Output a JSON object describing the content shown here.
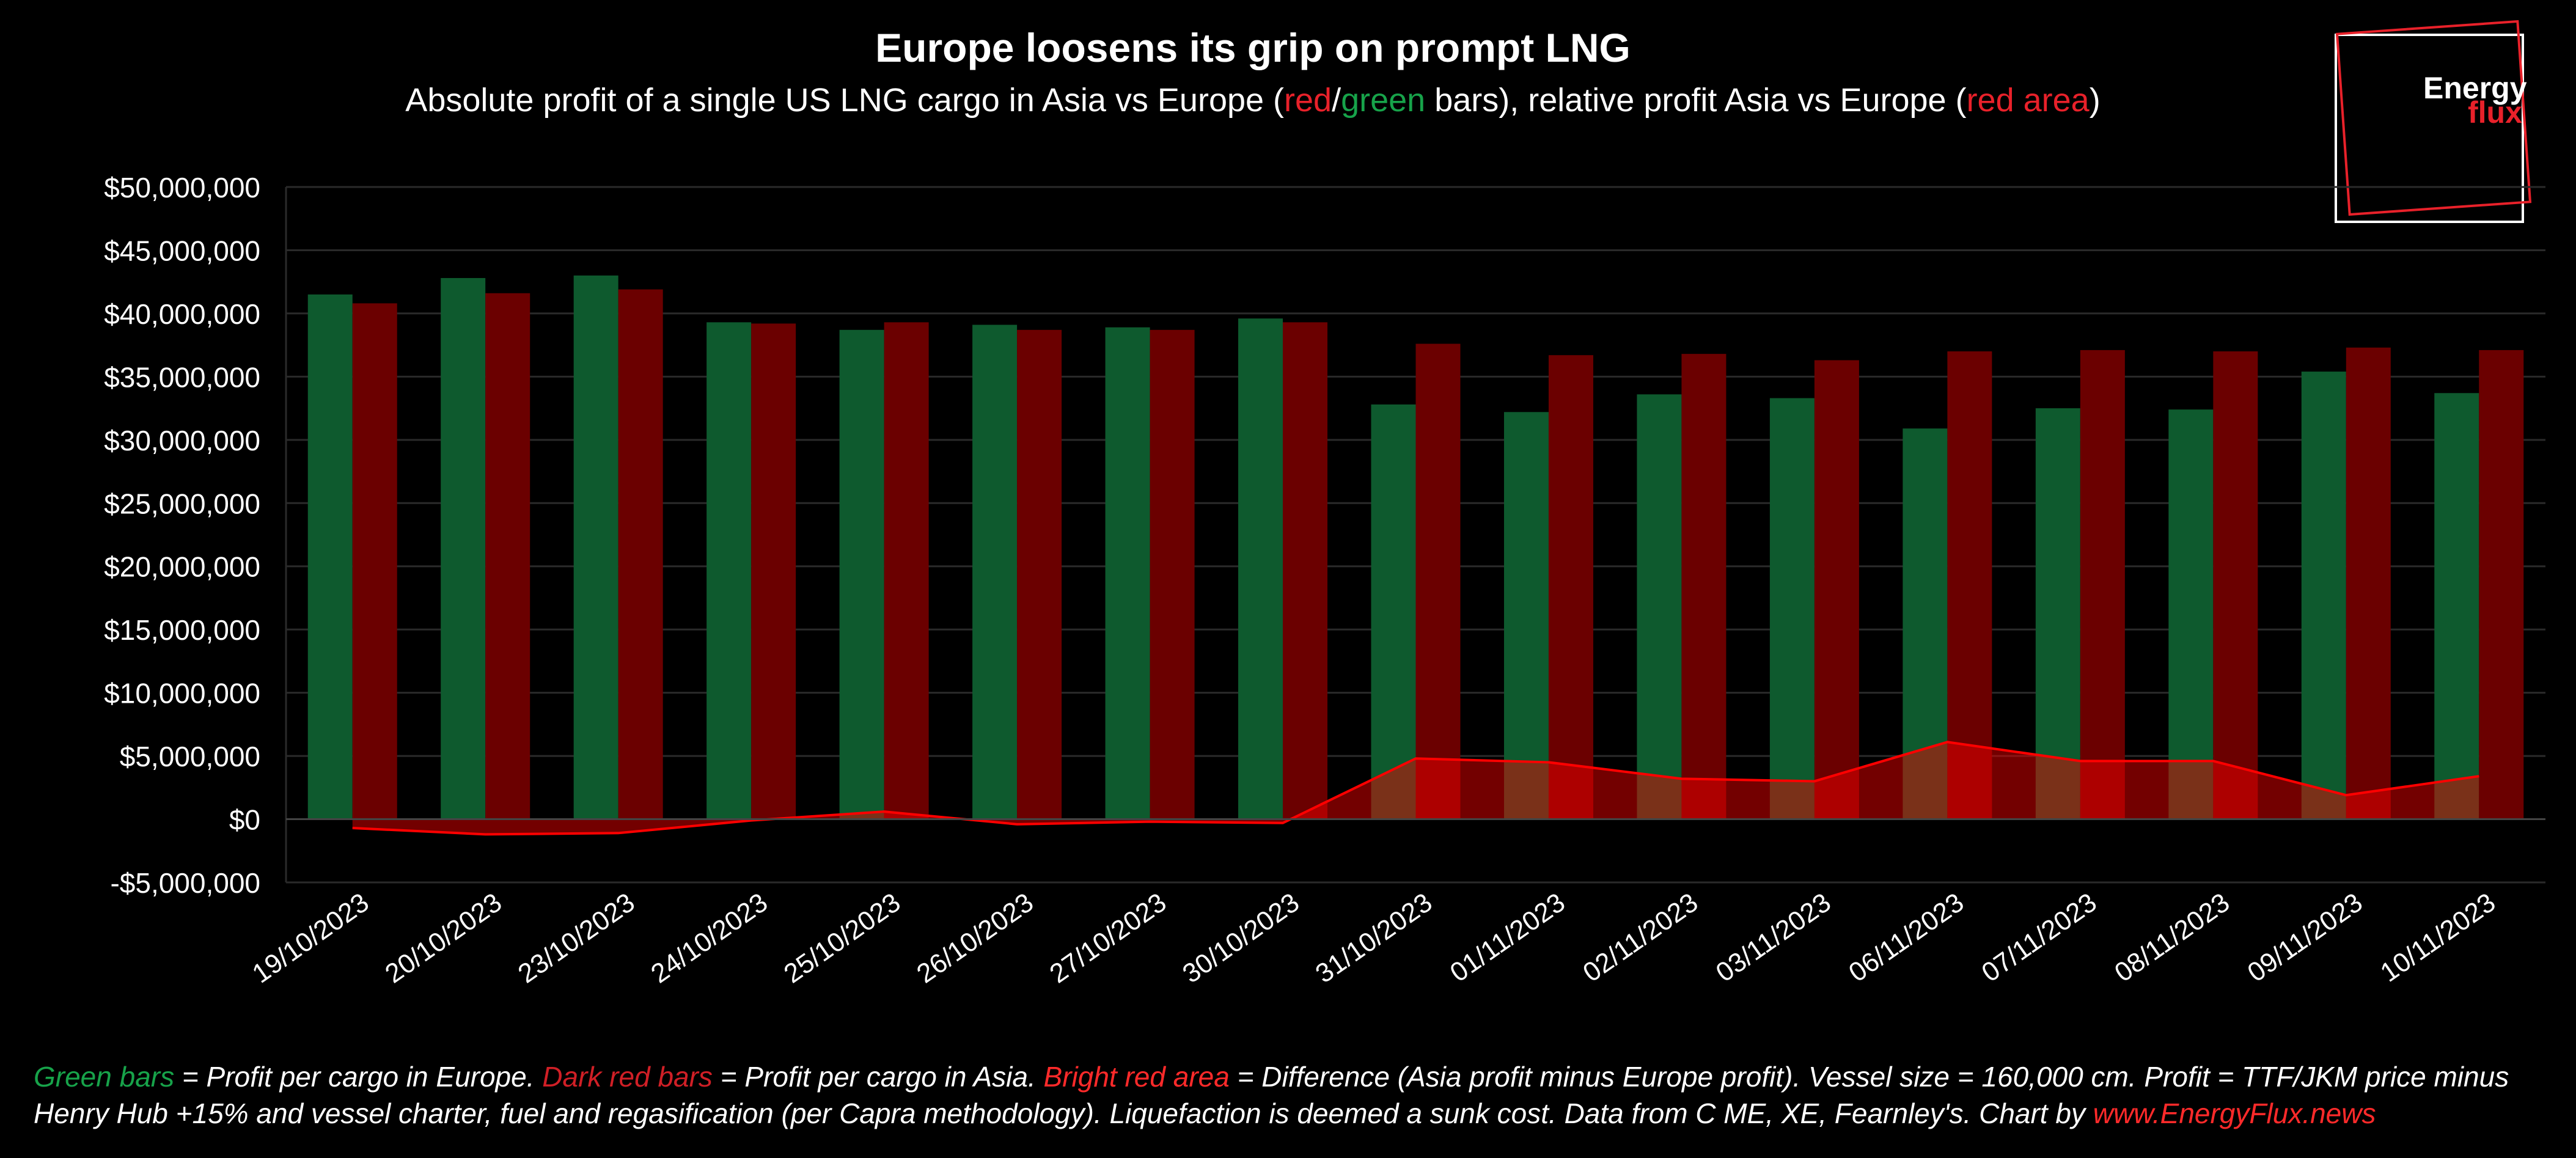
{
  "title": "Europe loosens its grip on prompt LNG",
  "subtitle": {
    "part1": "Absolute profit of a single US LNG cargo in Asia vs Europe (",
    "red": "red",
    "slash": "/",
    "green": "green",
    "part2": " bars), relative profit Asia vs Europe (",
    "red_area": "red area",
    "part3": ")"
  },
  "logo": {
    "line1": "Energy",
    "line2": "flux"
  },
  "footnote": {
    "green_label": "Green bars",
    "t1": " =  Profit per cargo in Europe. ",
    "darkred_label": "Dark red bars",
    "t2": " = Profit per cargo in Asia. ",
    "bright_label": "Bright red area",
    "t3": " = Difference (Asia profit minus Europe profit). Vessel size = 160,000 cm. Profit = TTF/JKM price minus Henry Hub +15% and vessel charter, fuel and regasification (per Capra methodology). Liquefaction is deemed a sunk cost. Data from C ME, XE, Fearnley's. Chart by ",
    "link": "www.EnergyFlux.news"
  },
  "colors": {
    "europe": "#0e5a2e",
    "asia": "#6b0000",
    "difference": "#ff0000",
    "grid": "#2a2a2a",
    "text": "#ffffff"
  },
  "chart_data": {
    "type": "bar",
    "categories": [
      "19/10/2023",
      "20/10/2023",
      "23/10/2023",
      "24/10/2023",
      "25/10/2023",
      "26/10/2023",
      "27/10/2023",
      "30/10/2023",
      "31/10/2023",
      "01/11/2023",
      "02/11/2023",
      "03/11/2023",
      "06/11/2023",
      "07/11/2023",
      "08/11/2023",
      "09/11/2023",
      "10/11/2023"
    ],
    "series": [
      {
        "type": "bar",
        "values": [
          41500000,
          42800000,
          43000000,
          39300000,
          38700000,
          39100000,
          38900000,
          39600000,
          32800000,
          32200000,
          33600000,
          33300000,
          30900000,
          32500000,
          32400000,
          35400000,
          33700000
        ]
      },
      {
        "type": "bar",
        "values": [
          40800000,
          41600000,
          41900000,
          39200000,
          39300000,
          38700000,
          38700000,
          39300000,
          37600000,
          36700000,
          36800000,
          36300000,
          37000000,
          37100000,
          37000000,
          37300000,
          37100000
        ]
      },
      {
        "type": "area",
        "values": [
          -700000,
          -1200000,
          -1100000,
          -100000,
          600000,
          -400000,
          -200000,
          -300000,
          4800000,
          4500000,
          3200000,
          3000000,
          6100000,
          4600000,
          4600000,
          1900000,
          3400000
        ]
      }
    ],
    "ylim": [
      -5000000,
      50000000
    ],
    "yticks": [
      -5000000,
      0,
      5000000,
      10000000,
      15000000,
      20000000,
      25000000,
      30000000,
      35000000,
      40000000,
      45000000,
      50000000
    ],
    "ytick_labels": [
      "-$5,000,000",
      "$0",
      "$5,000,000",
      "$10,000,000",
      "$15,000,000",
      "$20,000,000",
      "$25,000,000",
      "$30,000,000",
      "$35,000,000",
      "$40,000,000",
      "$45,000,000",
      "$50,000,000"
    ],
    "grid": true
  }
}
